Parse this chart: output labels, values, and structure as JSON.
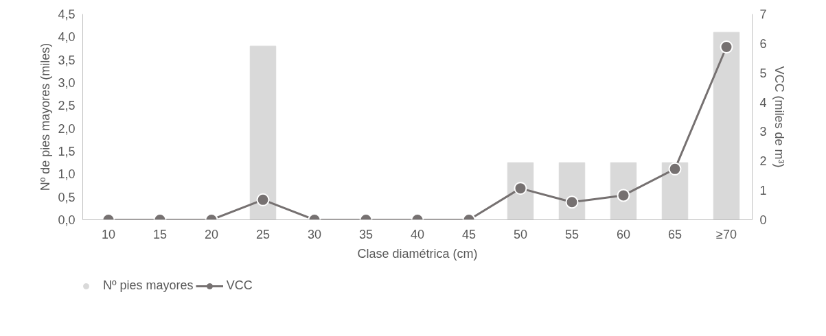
{
  "chart_data": {
    "type": "bar",
    "xlabel": "Clase diamétrica (cm)",
    "ylabel": "Nº de pies mayores (miles)",
    "y2label": "VCC (miles de m³)",
    "categories": [
      "10",
      "15",
      "20",
      "25",
      "30",
      "35",
      "40",
      "45",
      "50",
      "55",
      "60",
      "65",
      "≥70"
    ],
    "series": [
      {
        "name": "Nº pies mayores",
        "color": "#d9d9d9",
        "values": [
          0,
          0,
          0,
          3.8,
          0,
          0,
          0,
          0,
          1.25,
          1.25,
          1.25,
          1.25,
          4.1
        ]
      },
      {
        "name": "VCC",
        "type": "line",
        "axis": "y2",
        "color": "#767171",
        "marker": "circle",
        "values": [
          0,
          0,
          0,
          0.68,
          0,
          0,
          0,
          0,
          1.07,
          0.6,
          0.83,
          1.73,
          5.88
        ]
      }
    ],
    "ylim": [
      0,
      4.5
    ],
    "yticks": [
      {
        "value": 0,
        "label": "0,0"
      },
      {
        "value": 0.5,
        "label": "0,5"
      },
      {
        "value": 1,
        "label": "1,0"
      },
      {
        "value": 1.5,
        "label": "1,5"
      },
      {
        "value": 2,
        "label": "2,0"
      },
      {
        "value": 2.5,
        "label": "2,5"
      },
      {
        "value": 3,
        "label": "3,0"
      },
      {
        "value": 3.5,
        "label": "3,5"
      },
      {
        "value": 4,
        "label": "4,0"
      },
      {
        "value": 4.5,
        "label": "4,5"
      }
    ],
    "y2lim": [
      0,
      7
    ],
    "y2ticks": [
      0,
      1,
      2,
      3,
      4,
      5,
      6,
      7
    ],
    "grid": false,
    "legend": "bottom left"
  }
}
